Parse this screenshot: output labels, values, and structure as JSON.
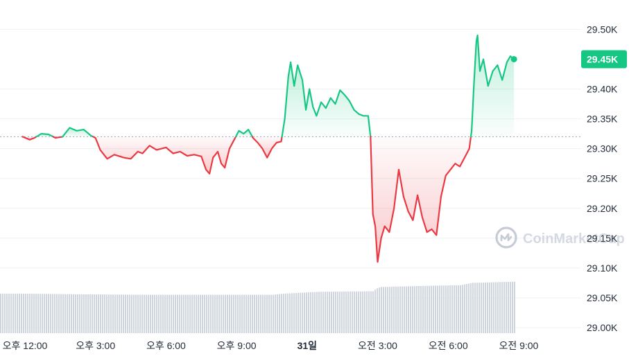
{
  "chart_data": {
    "type": "line",
    "baseline": 29320,
    "current_price": 29450,
    "current_label": "29.45K",
    "y_ticks": [
      {
        "value": 29500,
        "label": "29.50K"
      },
      {
        "value": 29400,
        "label": "29.40K"
      },
      {
        "value": 29350,
        "label": "29.35K"
      },
      {
        "value": 29300,
        "label": "29.30K"
      },
      {
        "value": 29250,
        "label": "29.25K"
      },
      {
        "value": 29200,
        "label": "29.20K"
      },
      {
        "value": 29150,
        "label": "29.15K"
      },
      {
        "value": 29100,
        "label": "29.10K"
      },
      {
        "value": 29050,
        "label": "29.05K"
      },
      {
        "value": 29000,
        "label": "29.00K"
      }
    ],
    "x_ticks": [
      {
        "x": 12,
        "label": "오후 12:00",
        "bold": false
      },
      {
        "x": 15,
        "label": "오후 3:00",
        "bold": false
      },
      {
        "x": 18,
        "label": "오후 6:00",
        "bold": false
      },
      {
        "x": 21,
        "label": "오후 9:00",
        "bold": false
      },
      {
        "x": 24,
        "label": "31일",
        "bold": true
      },
      {
        "x": 27,
        "label": "오전 3:00",
        "bold": false
      },
      {
        "x": 30,
        "label": "오전 6:00",
        "bold": false
      },
      {
        "x": 33,
        "label": "오전 9:00",
        "bold": false
      }
    ],
    "x_range": [
      12,
      35.4
    ],
    "price_series": [
      [
        11.9,
        29320
      ],
      [
        12.2,
        29315
      ],
      [
        12.4,
        29318
      ],
      [
        12.7,
        29325
      ],
      [
        13.0,
        29324
      ],
      [
        13.3,
        29318
      ],
      [
        13.6,
        29320
      ],
      [
        13.9,
        29335
      ],
      [
        14.2,
        29330
      ],
      [
        14.5,
        29332
      ],
      [
        14.8,
        29322
      ],
      [
        15.0,
        29318
      ],
      [
        15.2,
        29298
      ],
      [
        15.5,
        29283
      ],
      [
        15.8,
        29290
      ],
      [
        16.2,
        29285
      ],
      [
        16.5,
        29283
      ],
      [
        16.8,
        29295
      ],
      [
        17.0,
        29292
      ],
      [
        17.3,
        29305
      ],
      [
        17.6,
        29298
      ],
      [
        18.0,
        29302
      ],
      [
        18.3,
        29292
      ],
      [
        18.6,
        29295
      ],
      [
        18.9,
        29288
      ],
      [
        19.2,
        29290
      ],
      [
        19.5,
        29287
      ],
      [
        19.7,
        29265
      ],
      [
        19.85,
        29258
      ],
      [
        20.0,
        29285
      ],
      [
        20.2,
        29295
      ],
      [
        20.35,
        29275
      ],
      [
        20.5,
        29268
      ],
      [
        20.7,
        29300
      ],
      [
        20.9,
        29315
      ],
      [
        21.1,
        29330
      ],
      [
        21.3,
        29325
      ],
      [
        21.5,
        29332
      ],
      [
        21.7,
        29318
      ],
      [
        21.9,
        29310
      ],
      [
        22.1,
        29300
      ],
      [
        22.3,
        29285
      ],
      [
        22.5,
        29300
      ],
      [
        22.7,
        29310
      ],
      [
        22.9,
        29312
      ],
      [
        23.05,
        29350
      ],
      [
        23.2,
        29420
      ],
      [
        23.3,
        29445
      ],
      [
        23.45,
        29405
      ],
      [
        23.6,
        29440
      ],
      [
        23.8,
        29415
      ],
      [
        23.95,
        29365
      ],
      [
        24.1,
        29400
      ],
      [
        24.25,
        29370
      ],
      [
        24.4,
        29355
      ],
      [
        24.6,
        29378
      ],
      [
        24.8,
        29368
      ],
      [
        25.0,
        29385
      ],
      [
        25.2,
        29375
      ],
      [
        25.4,
        29398
      ],
      [
        25.6,
        29390
      ],
      [
        25.8,
        29380
      ],
      [
        26.0,
        29365
      ],
      [
        26.2,
        29358
      ],
      [
        26.4,
        29355
      ],
      [
        26.6,
        29355
      ],
      [
        26.7,
        29320
      ],
      [
        26.8,
        29190
      ],
      [
        26.9,
        29170
      ],
      [
        27.0,
        29110
      ],
      [
        27.15,
        29150
      ],
      [
        27.3,
        29170
      ],
      [
        27.5,
        29160
      ],
      [
        27.7,
        29200
      ],
      [
        27.9,
        29265
      ],
      [
        28.1,
        29220
      ],
      [
        28.3,
        29195
      ],
      [
        28.5,
        29180
      ],
      [
        28.7,
        29222
      ],
      [
        28.9,
        29185
      ],
      [
        29.1,
        29160
      ],
      [
        29.3,
        29165
      ],
      [
        29.5,
        29155
      ],
      [
        29.7,
        29220
      ],
      [
        29.9,
        29255
      ],
      [
        30.1,
        29265
      ],
      [
        30.3,
        29275
      ],
      [
        30.5,
        29270
      ],
      [
        30.7,
        29285
      ],
      [
        30.9,
        29300
      ],
      [
        31.0,
        29330
      ],
      [
        31.1,
        29410
      ],
      [
        31.2,
        29480
      ],
      [
        31.25,
        29490
      ],
      [
        31.35,
        29430
      ],
      [
        31.5,
        29450
      ],
      [
        31.7,
        29405
      ],
      [
        31.9,
        29430
      ],
      [
        32.1,
        29440
      ],
      [
        32.3,
        29415
      ],
      [
        32.5,
        29445
      ],
      [
        32.65,
        29455
      ],
      [
        32.8,
        29450
      ]
    ],
    "volume_series": [
      [
        11.9,
        29057
      ],
      [
        14.0,
        29056
      ],
      [
        17.0,
        29055
      ],
      [
        20.0,
        29055
      ],
      [
        22.5,
        29055
      ],
      [
        23.0,
        29057
      ],
      [
        24.5,
        29060
      ],
      [
        26.8,
        29061
      ],
      [
        26.9,
        29065
      ],
      [
        27.1,
        29068
      ],
      [
        29.0,
        29070
      ],
      [
        30.5,
        29071
      ],
      [
        31.0,
        29075
      ],
      [
        32.8,
        29077
      ]
    ],
    "colors": {
      "up": "#16c784",
      "down": "#ea3943",
      "grid": "#eff1f4",
      "baseline": "#9aa3b0",
      "volume": "#cfd5de",
      "volume_fill": "#eef1f5"
    },
    "legend": "none",
    "grid": true
  },
  "watermark": {
    "text": "CoinMarketCap",
    "icon": "coinmarketcap-logo-icon"
  }
}
